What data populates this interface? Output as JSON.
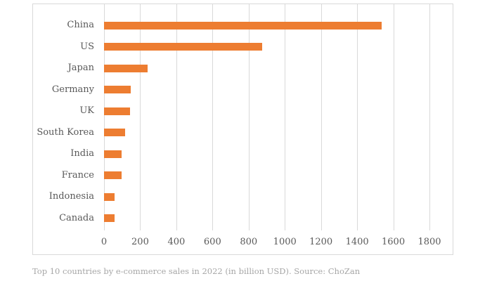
{
  "chart_data": {
    "type": "bar",
    "orientation": "horizontal",
    "title": "",
    "caption": "Top 10 countries by e-commerce sales in 2022 (in billion USD). Source: ChoZan",
    "xlabel": "",
    "ylabel": "",
    "categories": [
      "China",
      "US",
      "Japan",
      "Germany",
      "UK",
      "South Korea",
      "India",
      "France",
      "Indonesia",
      "Canada"
    ],
    "values": [
      1536,
      875,
      240,
      149,
      144,
      118,
      96,
      96,
      60,
      60
    ],
    "xlim": [
      0,
      1800
    ],
    "xticks": [
      0,
      200,
      400,
      600,
      800,
      1000,
      1200,
      1400,
      1600,
      1800
    ],
    "grid": "vertical",
    "legend": "none",
    "bar_color": "#ED7D31",
    "gridline_color": "#D9D9D9",
    "label_color": "#595959",
    "caption_color": "#A6A6A6"
  }
}
